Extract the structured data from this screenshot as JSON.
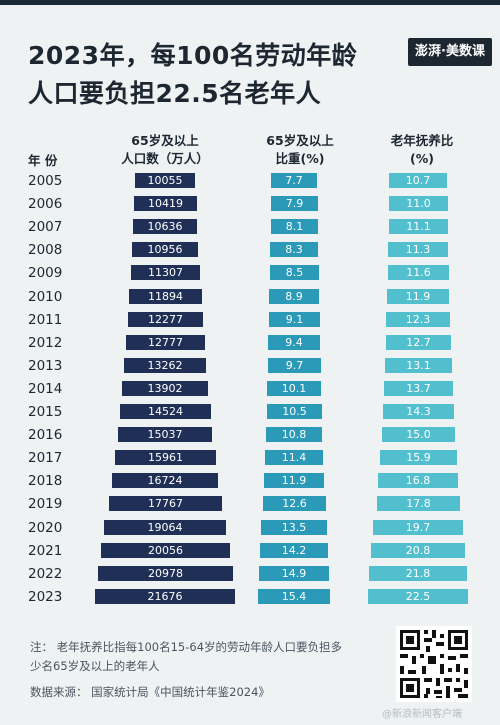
{
  "header": {
    "title_line1": "2023年，每100名劳动年龄",
    "title_line2": "人口要负担22.5名老年人",
    "logo_text": "澎湃·美数课"
  },
  "columns": {
    "year": "年 份",
    "pop_line1": "65岁及以上",
    "pop_line2": "人口数（万人）",
    "share_line1": "65岁及以上",
    "share_line2": "比重(%)",
    "ratio_line1": "老年抚养比",
    "ratio_line2": "(%)"
  },
  "colors": {
    "pop": "#1f2f56",
    "share": "#2b9ab9",
    "ratio": "#52bfcf"
  },
  "chart_data": {
    "type": "table",
    "title": "2023年，每100名劳动年龄人口要负担22.5名老年人",
    "categories": [
      "2005",
      "2006",
      "2007",
      "2008",
      "2009",
      "2010",
      "2011",
      "2012",
      "2013",
      "2014",
      "2015",
      "2016",
      "2017",
      "2018",
      "2019",
      "2020",
      "2021",
      "2022",
      "2023"
    ],
    "series": [
      {
        "name": "65岁及以上人口数（万人）",
        "values": [
          "10055",
          "10419",
          "10636",
          "10956",
          "11307",
          "11894",
          "12277",
          "12777",
          "13262",
          "13902",
          "14524",
          "15037",
          "15961",
          "16724",
          "17767",
          "19064",
          "20056",
          "20978",
          "21676"
        ]
      },
      {
        "name": "65岁及以上比重(%)",
        "values": [
          "7.7",
          "7.9",
          "8.1",
          "8.3",
          "8.5",
          "8.9",
          "9.1",
          "9.4",
          "9.7",
          "10.1",
          "10.5",
          "10.8",
          "11.4",
          "11.9",
          "12.6",
          "13.5",
          "14.2",
          "14.9",
          "15.4"
        ]
      },
      {
        "name": "老年抚养比(%)",
        "values": [
          "10.7",
          "11.0",
          "11.1",
          "11.3",
          "11.6",
          "11.9",
          "12.3",
          "12.7",
          "13.1",
          "13.7",
          "14.3",
          "15.0",
          "15.9",
          "16.8",
          "17.8",
          "19.7",
          "20.8",
          "21.8",
          "22.5"
        ]
      }
    ]
  },
  "footer": {
    "note_line1": "注：  老年抚养比指每100名15-64岁的劳动年龄人口要负担多",
    "note_line2": "少名65岁及以上的老年人",
    "source": "数据来源：  国家统计局《中国统计年鉴2024》",
    "watermark": "@新浪新闻客户端"
  }
}
